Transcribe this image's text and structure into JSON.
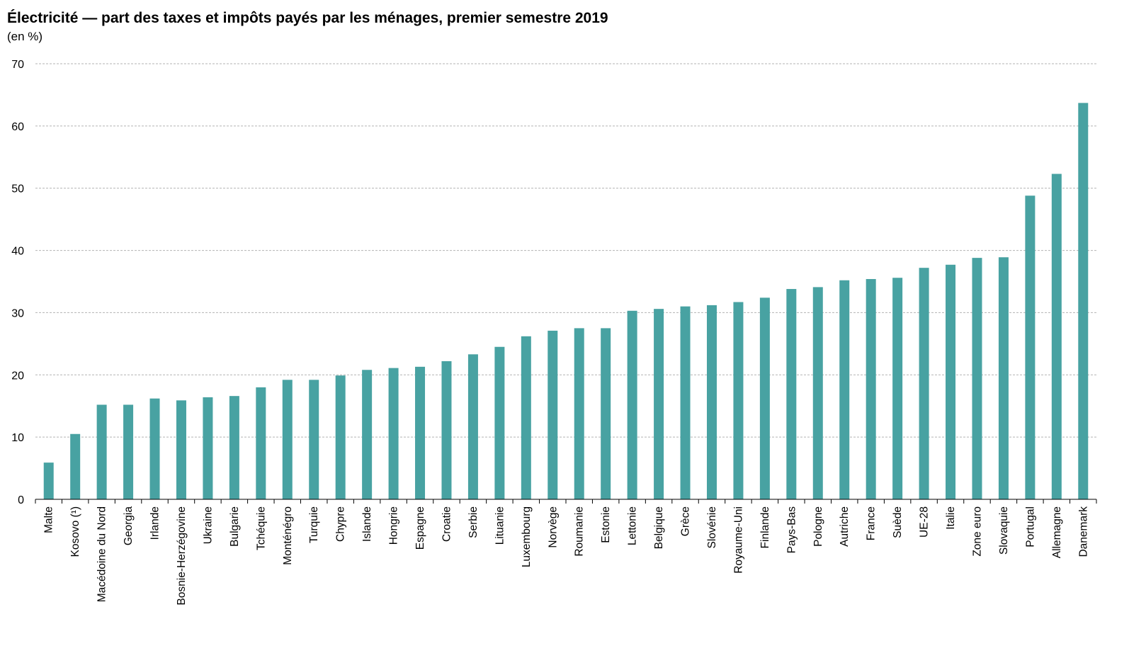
{
  "chart_data": {
    "type": "bar",
    "title": "Électricité — part des taxes et impôts payés par les ménages, premier semestre 2019",
    "subtitle": "(en %)",
    "xlabel": "",
    "ylabel": "",
    "ylim": [
      0,
      70
    ],
    "yticks": [
      0,
      10,
      20,
      30,
      40,
      50,
      60,
      70
    ],
    "grid": true,
    "legend": "none",
    "bar_color": "#48A2A2",
    "categories": [
      "Malte",
      "Kosovo (¹)",
      "Macédoine du Nord",
      "Georgia",
      "Irlande",
      "Bosnie-Herzégovine",
      "Ukraine",
      "Bulgarie",
      "Tchéquie",
      "Monténégro",
      "Turquie",
      "Chypre",
      "Islande",
      "Hongrie",
      "Espagne",
      "Croatie",
      "Serbie",
      "Lituanie",
      "Luxembourg",
      "Norvège",
      "Roumanie",
      "Estonie",
      "Lettonie",
      "Belgique",
      "Grèce",
      "Slovénie",
      "Royaume-Uni",
      "Finlande",
      "Pays-Bas",
      "Pologne",
      "Autriche",
      "France",
      "Suède",
      "UE-28",
      "Italie",
      "Zone euro",
      "Slovaquie",
      "Portugal",
      "Allemagne",
      "Danemark"
    ],
    "values": [
      5.9,
      10.5,
      15.2,
      15.2,
      16.2,
      15.9,
      16.4,
      16.6,
      18.0,
      19.2,
      19.2,
      19.9,
      20.8,
      21.1,
      21.3,
      22.2,
      23.3,
      24.5,
      26.2,
      27.1,
      27.5,
      27.5,
      30.3,
      30.6,
      31.0,
      31.2,
      31.7,
      32.4,
      33.8,
      34.1,
      35.2,
      35.4,
      35.6,
      37.2,
      37.7,
      38.8,
      38.9,
      48.8,
      52.3,
      63.7
    ]
  }
}
